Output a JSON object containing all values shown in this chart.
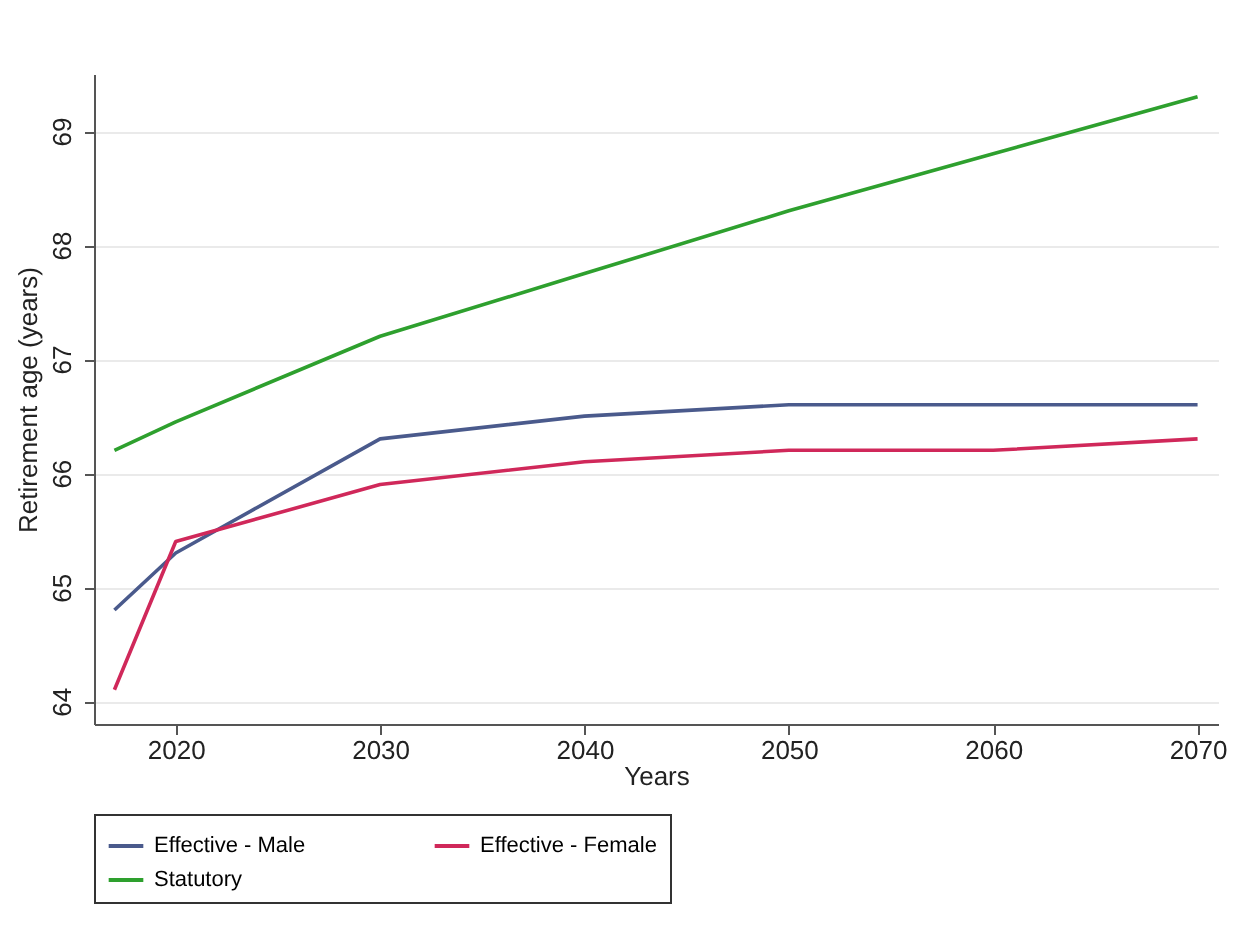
{
  "chart_data": {
    "type": "line",
    "xlabel": "Years",
    "ylabel": "Retirement age (years)",
    "x": [
      2017,
      2020,
      2030,
      2040,
      2050,
      2060,
      2070
    ],
    "xlim": [
      2016,
      2071
    ],
    "xticks": [
      2020,
      2030,
      2040,
      2050,
      2060,
      2070
    ],
    "ylim": [
      63.8,
      69.5
    ],
    "yticks": [
      64,
      65,
      66,
      67,
      68,
      69
    ],
    "grid": "y",
    "legend": "bottom",
    "line_style": "solid",
    "marker": "none",
    "series": [
      {
        "name": "Effective - Male",
        "color": "#4a5a8c",
        "values": [
          64.8,
          65.3,
          66.3,
          66.5,
          66.6,
          66.6,
          66.6
        ]
      },
      {
        "name": "Effective - Female",
        "color": "#d0285a",
        "values": [
          64.1,
          65.4,
          65.9,
          66.1,
          66.2,
          66.2,
          66.3
        ]
      },
      {
        "name": "Statutory",
        "color": "#2ea02e",
        "values": [
          66.2,
          66.45,
          67.2,
          67.75,
          68.3,
          68.8,
          69.3
        ]
      }
    ]
  }
}
